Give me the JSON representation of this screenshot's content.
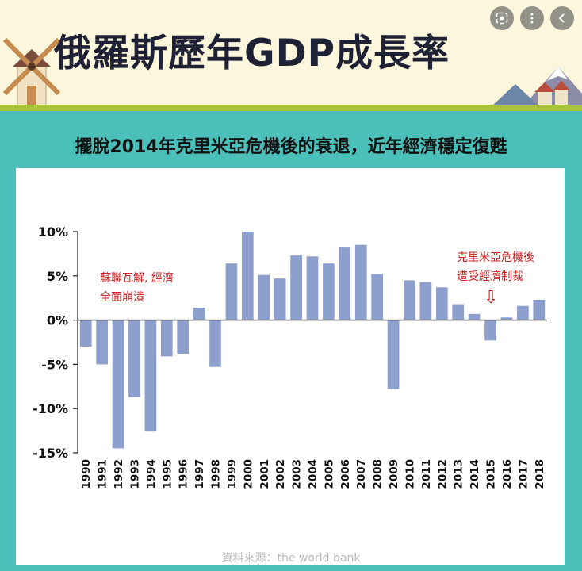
{
  "header": {
    "title": "俄羅斯歷年GDP成長率",
    "subtitle": "擺脫2014年克里米亞危機後的衰退，近年經濟穩定復甦"
  },
  "toolbar": {
    "lens_icon": "lens-icon",
    "more_icon": "more-vert-icon",
    "back_icon": "chevron-left-icon"
  },
  "annotations": {
    "soviet_line1": "蘇聯瓦解, 經濟",
    "soviet_line2": "全面崩潰",
    "crimea_line1": "克里米亞危機後",
    "crimea_line2": "遭受經濟制裁",
    "arrow_glyph": "⇩"
  },
  "source": "資料來源：the world bank",
  "colors": {
    "bar": "#8d9fcc",
    "annotation": "#c81f1f",
    "background": "#4bbfba"
  },
  "chart_data": {
    "type": "bar",
    "categories": [
      "1990",
      "1991",
      "1992",
      "1993",
      "1994",
      "1995",
      "1996",
      "1997",
      "1998",
      "1999",
      "2000",
      "2001",
      "2002",
      "2003",
      "2004",
      "2005",
      "2006",
      "2007",
      "2008",
      "2009",
      "2010",
      "2011",
      "2012",
      "2013",
      "2014",
      "2015",
      "2016",
      "2017",
      "2018"
    ],
    "values": [
      -3.0,
      -5.0,
      -14.5,
      -8.7,
      -12.6,
      -4.1,
      -3.8,
      1.4,
      -5.3,
      6.4,
      10.0,
      5.1,
      4.7,
      7.3,
      7.2,
      6.4,
      8.2,
      8.5,
      5.2,
      -7.8,
      4.5,
      4.3,
      3.7,
      1.8,
      0.7,
      -2.3,
      0.3,
      1.6,
      2.3
    ],
    "ylim": [
      -15,
      10
    ],
    "yticks": [
      10,
      5,
      0,
      -5,
      -10,
      -15
    ],
    "ytick_labels": [
      "10%",
      "5%",
      "0%",
      "-5%",
      "-10%",
      "-15%"
    ],
    "grid": false,
    "legend": "none"
  }
}
